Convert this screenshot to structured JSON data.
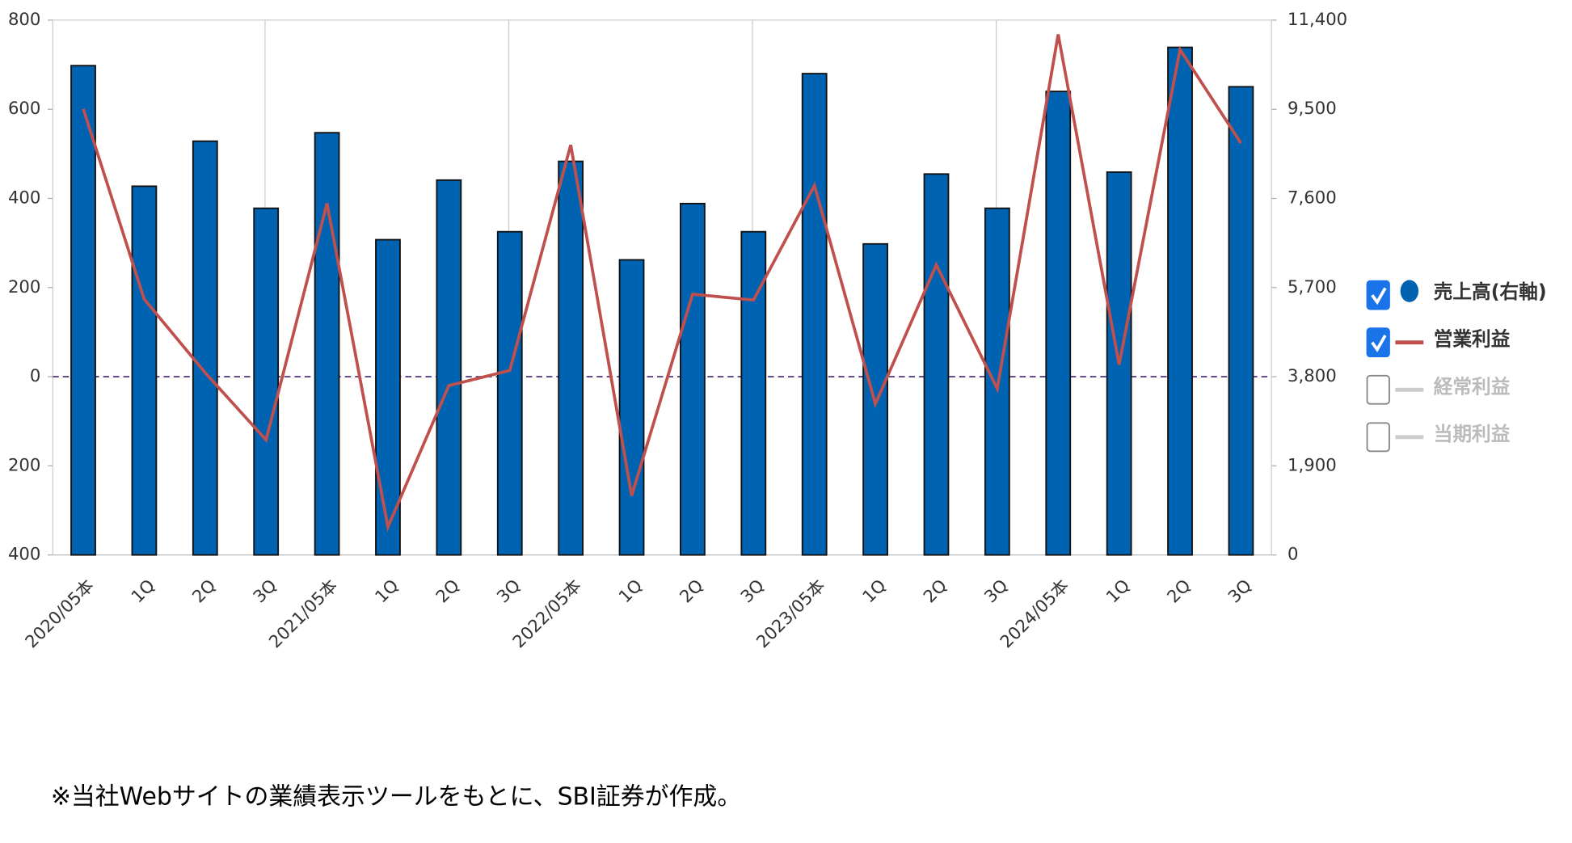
{
  "chart_data": {
    "type": "bar_line",
    "categories": [
      "2020/05本",
      "1Q",
      "2Q",
      "3Q",
      "2021/05本",
      "1Q",
      "2Q",
      "3Q",
      "2022/05本",
      "1Q",
      "2Q",
      "3Q",
      "2023/05本",
      "1Q",
      "2Q",
      "3Q",
      "2024/05本",
      "1Q",
      "2Q",
      "3Q"
    ],
    "series": [
      {
        "name": "売上高(右軸)",
        "type": "bar",
        "axis": "y2",
        "color": "#0063b1",
        "checked": true,
        "values": [
          10430,
          7860,
          8820,
          7390,
          9000,
          6720,
          7990,
          6890,
          8390,
          6290,
          7490,
          6890,
          10260,
          6630,
          8120,
          7390,
          9880,
          8160,
          10820,
          9980
        ]
      },
      {
        "name": "営業利益",
        "type": "line",
        "color": "#c0504d",
        "checked": true,
        "values": [
          601,
          174,
          9,
          -142,
          389,
          -337,
          -20,
          14,
          520,
          -267,
          185,
          172,
          429,
          -61,
          251,
          -27,
          768,
          27,
          734,
          524
        ]
      }
    ],
    "hidden_series": [
      {
        "name": "経常利益",
        "checked": false
      },
      {
        "name": "当期利益",
        "checked": false
      }
    ],
    "ylim": [
      -400,
      800
    ],
    "yticks": [
      {
        "value": -400,
        "label": "400"
      },
      {
        "value": -200,
        "label": "200"
      },
      0,
      200,
      400,
      600,
      800
    ],
    "y2lim": [
      0,
      11400
    ],
    "y2ticks": [
      0,
      {
        "value": 1900,
        "label": "1,900"
      },
      {
        "value": 3800,
        "label": "3,800"
      },
      {
        "value": 5700,
        "label": "5,700"
      },
      {
        "value": 7600,
        "label": "7,600"
      },
      {
        "value": 9500,
        "label": "9,500"
      },
      {
        "value": 11400,
        "label": "11,400"
      }
    ],
    "zero_line": true,
    "note": "※当社Webサイトの業績表示ツールをもとに、SBI証券が作成。"
  }
}
